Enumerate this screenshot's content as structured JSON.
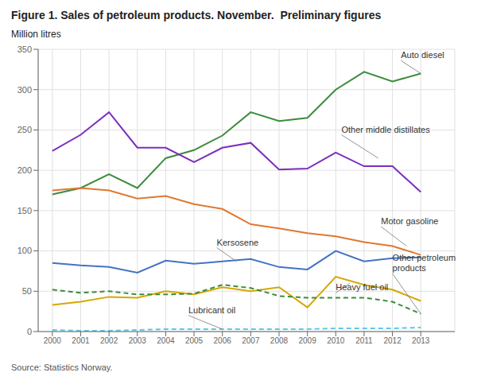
{
  "chart_data": {
    "type": "line",
    "title": "Figure 1. Sales of petroleum products. November.  Preliminary figures",
    "y_label": "Million litres",
    "source": "Source: Statistics Norway.",
    "x": [
      2000,
      2001,
      2002,
      2003,
      2004,
      2005,
      2006,
      2007,
      2008,
      2009,
      2010,
      2011,
      2012,
      2013
    ],
    "series": [
      {
        "name": "Auto diesel",
        "color": "#3c8c3c",
        "line_style": "solid",
        "values": [
          170,
          178,
          195,
          178,
          215,
          225,
          243,
          272,
          261,
          265,
          300,
          322,
          310,
          320
        ]
      },
      {
        "name": "Other middle distillates",
        "color": "#7b2fbe",
        "line_style": "solid",
        "values": [
          224,
          244,
          272,
          228,
          228,
          210,
          228,
          234,
          201,
          202,
          222,
          205,
          205,
          173
        ]
      },
      {
        "name": "Motor gasoline",
        "color": "#e07830",
        "line_style": "solid",
        "values": [
          175,
          178,
          175,
          165,
          168,
          158,
          152,
          133,
          128,
          122,
          118,
          111,
          106,
          95
        ]
      },
      {
        "name": "Kersosene",
        "color": "#4472c4",
        "line_style": "solid",
        "values": [
          85,
          82,
          80,
          73,
          88,
          84,
          87,
          90,
          80,
          77,
          100,
          87,
          91,
          92
        ]
      },
      {
        "name": "Heavy fuel oil",
        "color": "#d4a800",
        "line_style": "solid",
        "values": [
          33,
          37,
          43,
          42,
          50,
          46,
          55,
          50,
          55,
          30,
          68,
          58,
          52,
          38
        ]
      },
      {
        "name": "Other petroleum products",
        "color": "#3c8c3c",
        "line_style": "dashed",
        "values": [
          52,
          48,
          50,
          46,
          46,
          47,
          58,
          54,
          44,
          42,
          42,
          42,
          37,
          22
        ]
      },
      {
        "name": "Lubricant oil",
        "color": "#5bc8e8",
        "line_style": "dashed",
        "values": [
          2,
          1,
          1,
          2,
          3,
          3,
          3,
          3,
          3,
          3,
          4,
          4,
          4,
          5
        ]
      }
    ],
    "annotations": [
      {
        "text": "Auto diesel",
        "x": 2013,
        "y": 320,
        "text_x": 2012.3,
        "text_y": 336
      },
      {
        "text": "Other middle distillates",
        "x": 2011.5,
        "y": 215,
        "text_x": 2010.2,
        "text_y": 244
      },
      {
        "text": "Motor gasoline",
        "x": 2012.5,
        "y": 106,
        "text_x": 2011.6,
        "text_y": 130
      },
      {
        "text": "Kersosene",
        "x": 2006.5,
        "y": 87,
        "text_x": 2005.8,
        "text_y": 104
      },
      {
        "text": "Heavy fuel oil",
        "x": 2010.5,
        "y": 60,
        "text_x": 2010.0,
        "text_y": 48
      },
      {
        "text": "Other petroleum\nproducts",
        "x": 2013,
        "y": 22,
        "text_x": 2012.0,
        "text_y": 72
      },
      {
        "text": "Lubricant oil",
        "x": 2006,
        "y": 3,
        "text_x": 2004.8,
        "text_y": 20
      }
    ],
    "xlim": [
      1999.5,
      2014.2
    ],
    "xticks": [
      2000,
      2001,
      2002,
      2003,
      2004,
      2005,
      2006,
      2007,
      2008,
      2009,
      2010,
      2011,
      2012,
      2013
    ],
    "ylim": [
      0,
      350
    ],
    "yticks": [
      0,
      50,
      100,
      150,
      200,
      250,
      300,
      350
    ],
    "grid": true
  }
}
